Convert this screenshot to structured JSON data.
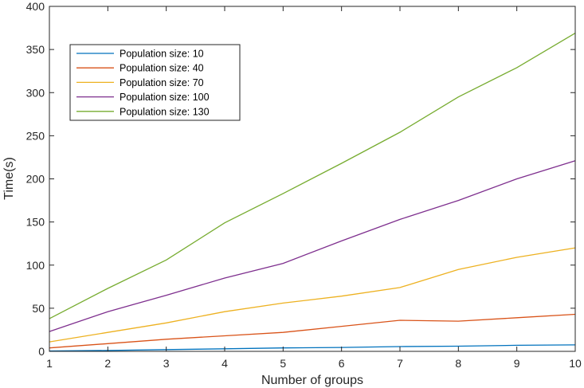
{
  "chart_data": {
    "type": "line",
    "title": "",
    "xlabel": "Number of groups",
    "ylabel": "Time(s)",
    "xlim": [
      1,
      10
    ],
    "ylim": [
      0,
      400
    ],
    "xticks": [
      1,
      2,
      3,
      4,
      5,
      6,
      7,
      8,
      9,
      10
    ],
    "yticks": [
      0,
      50,
      100,
      150,
      200,
      250,
      300,
      350,
      400
    ],
    "grid": false,
    "legend_position": "top-left",
    "x": [
      1,
      2,
      3,
      4,
      5,
      6,
      7,
      8,
      9,
      10
    ],
    "series": [
      {
        "name": "Population size: 10",
        "color": "#0072BD",
        "values": [
          0.5,
          1,
          2,
          3,
          4,
          4.5,
          5.5,
          6,
          7,
          7.5
        ]
      },
      {
        "name": "Population size: 40",
        "color": "#D95319",
        "values": [
          4,
          9,
          14,
          18,
          22,
          29,
          36,
          35,
          39,
          43
        ]
      },
      {
        "name": "Population size: 70",
        "color": "#EDB120",
        "values": [
          11,
          22,
          33,
          46,
          56,
          64,
          74,
          95,
          109,
          120
        ]
      },
      {
        "name": "Population size: 100",
        "color": "#7E2F8E",
        "values": [
          23,
          46,
          65,
          85,
          102,
          128,
          153,
          175,
          200,
          221
        ]
      },
      {
        "name": "Population size: 130",
        "color": "#77AC30",
        "values": [
          38,
          73,
          106,
          149,
          183,
          218,
          254,
          295,
          329,
          369
        ]
      }
    ]
  }
}
